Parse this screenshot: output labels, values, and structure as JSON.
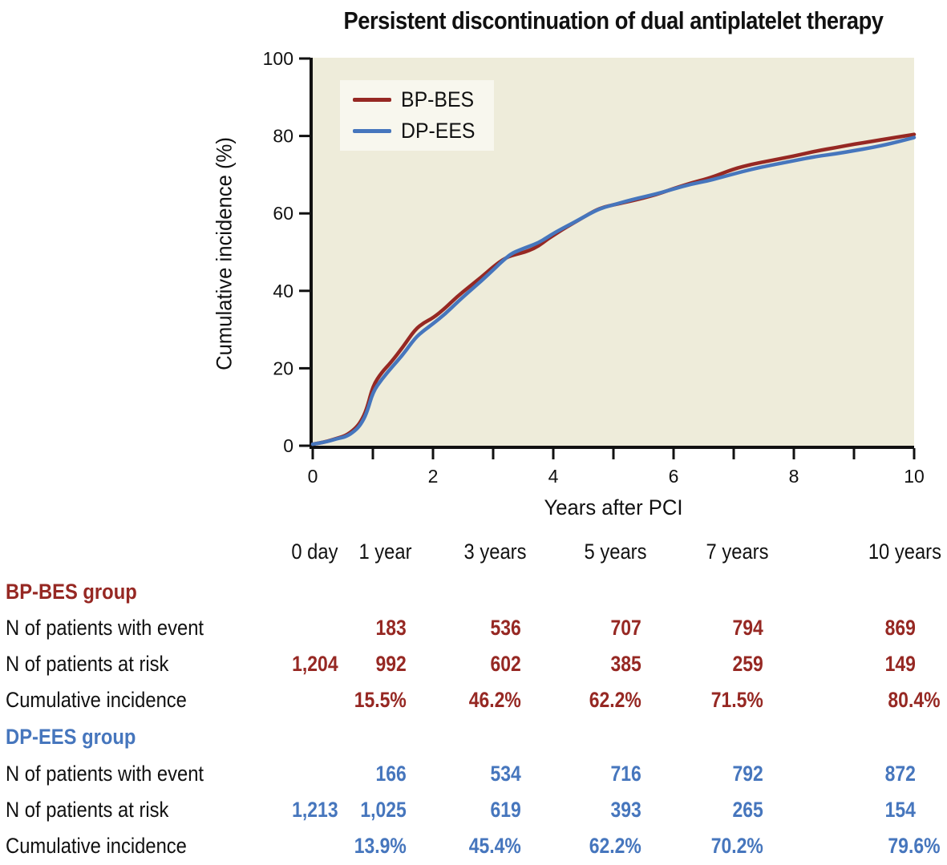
{
  "title": "Persistent discontinuation of dual antiplatelet therapy",
  "chart_data": {
    "type": "line",
    "title": "Persistent discontinuation of dual antiplatelet therapy",
    "xlabel": "Years after PCI",
    "ylabel": "Cumulative incidence (%)",
    "xlim": [
      0,
      10
    ],
    "ylim": [
      0,
      100
    ],
    "x_major_ticks": [
      0,
      2,
      4,
      6,
      8,
      10
    ],
    "x_minor_ticks": [
      1,
      3,
      5,
      7,
      9
    ],
    "y_ticks": [
      0,
      20,
      40,
      60,
      80,
      100
    ],
    "grid": "off",
    "plot_bg": "#eeecda",
    "axis_color": "#111111",
    "legend_position": "upper-left-inside",
    "legend": [
      {
        "name": "BP-BES",
        "color": "#962823"
      },
      {
        "name": "DP-EES",
        "color": "#4676bd"
      }
    ],
    "x": [
      0,
      0.2,
      0.4,
      0.55,
      0.7,
      0.8,
      0.9,
      1.0,
      1.15,
      1.3,
      1.5,
      1.7,
      1.85,
      2.0,
      2.2,
      2.4,
      2.6,
      2.8,
      3.0,
      3.1,
      3.2,
      3.3,
      3.45,
      3.6,
      3.75,
      3.9,
      4.0,
      4.15,
      4.3,
      4.5,
      4.7,
      4.85,
      5.0,
      5.2,
      5.4,
      5.6,
      5.8,
      6.0,
      6.3,
      6.6,
      7.0,
      7.3,
      7.6,
      8.0,
      8.4,
      8.7,
      9.0,
      9.3,
      9.6,
      10.0
    ],
    "series": [
      {
        "name": "BP-BES",
        "color": "#962823",
        "values": [
          0.4,
          0.9,
          1.9,
          2.6,
          4.3,
          6.2,
          9.5,
          15.5,
          19.0,
          21.5,
          25.5,
          30.0,
          31.8,
          33.0,
          35.5,
          38.5,
          41.0,
          43.5,
          46.2,
          47.4,
          48.4,
          49.1,
          49.7,
          50.4,
          51.5,
          53.3,
          54.3,
          55.8,
          57.2,
          59.0,
          60.8,
          61.7,
          62.2,
          62.9,
          63.6,
          64.4,
          65.3,
          66.4,
          67.9,
          69.1,
          71.5,
          72.7,
          73.6,
          74.8,
          76.2,
          77.0,
          77.9,
          78.6,
          79.4,
          80.4
        ]
      },
      {
        "name": "DP-EES",
        "color": "#4676bd",
        "values": [
          0.4,
          0.9,
          1.8,
          2.3,
          3.8,
          5.5,
          8.5,
          13.9,
          17.2,
          20.0,
          23.5,
          27.8,
          29.8,
          31.5,
          34.0,
          37.0,
          39.8,
          42.5,
          45.4,
          46.9,
          48.3,
          49.6,
          50.6,
          51.5,
          52.4,
          53.8,
          54.8,
          56.1,
          57.3,
          59.0,
          60.7,
          61.6,
          62.2,
          63.1,
          63.9,
          64.6,
          65.4,
          66.3,
          67.6,
          68.5,
          70.2,
          71.4,
          72.4,
          73.6,
          74.8,
          75.4,
          76.2,
          77.0,
          78.0,
          79.6
        ]
      }
    ],
    "landmark_columns": [
      "0 day",
      "1 year",
      "3 years",
      "5 years",
      "7 years",
      "10 years"
    ],
    "landmark_table": {
      "BP-BES": {
        "n_with_event": [
          null,
          183,
          536,
          707,
          794,
          869
        ],
        "n_at_risk": [
          1204,
          992,
          602,
          385,
          259,
          149
        ],
        "cumulative_incidence_pct": [
          null,
          15.5,
          46.2,
          62.2,
          71.5,
          80.4
        ]
      },
      "DP-EES": {
        "n_with_event": [
          null,
          166,
          534,
          716,
          792,
          872
        ],
        "n_at_risk": [
          1213,
          1025,
          619,
          393,
          265,
          154
        ],
        "cumulative_incidence_pct": [
          null,
          13.9,
          45.4,
          62.2,
          70.2,
          79.6
        ]
      }
    }
  },
  "table": {
    "columns": [
      "0 day",
      "1 year",
      "3 years",
      "5 years",
      "7 years",
      "10 years"
    ],
    "groups": [
      {
        "name": "BP-BES group",
        "color": "#962823",
        "rows": [
          {
            "label": "N of patients with event",
            "values": [
              "",
              "183",
              "536",
              "707",
              "794",
              "869"
            ]
          },
          {
            "label": "N of patients at risk",
            "values": [
              "1,204",
              "992",
              "602",
              "385",
              "259",
              "149"
            ]
          },
          {
            "label": "Cumulative incidence",
            "values": [
              "",
              "15.5%",
              "46.2%",
              "62.2%",
              "71.5%",
              "80.4%"
            ]
          }
        ]
      },
      {
        "name": "DP-EES group",
        "color": "#4676bd",
        "rows": [
          {
            "label": "N of patients with event",
            "values": [
              "",
              "166",
              "534",
              "716",
              "792",
              "872"
            ]
          },
          {
            "label": "N of patients at risk",
            "values": [
              "1,213",
              "1,025",
              "619",
              "393",
              "265",
              "154"
            ]
          },
          {
            "label": "Cumulative incidence",
            "values": [
              "",
              "13.9%",
              "45.4%",
              "62.2%",
              "70.2%",
              "79.6%"
            ]
          }
        ]
      }
    ]
  }
}
